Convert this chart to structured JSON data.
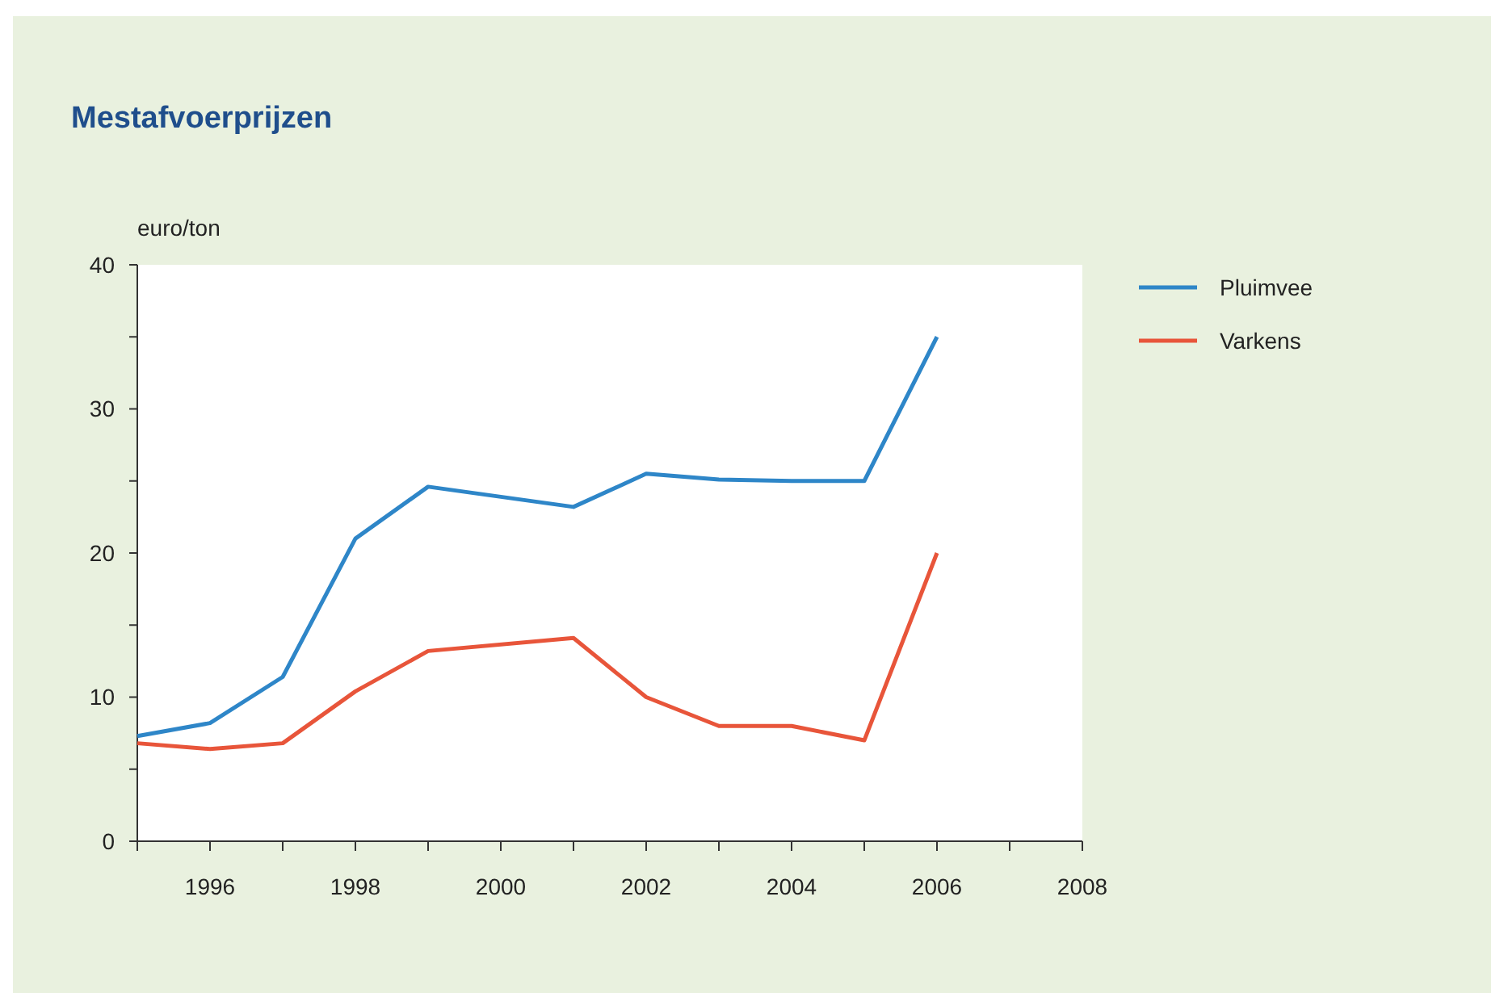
{
  "chart_data": {
    "type": "line",
    "title": "Mestafvoerprijzen",
    "ylabel": "euro/ton",
    "x": [
      1995,
      1996,
      1997,
      1998,
      1999,
      2001,
      2002,
      2003,
      2004,
      2005,
      2006
    ],
    "series": [
      {
        "name": "Pluimvee",
        "color": "#2e86c8",
        "values": [
          7.3,
          8.2,
          11.4,
          21,
          24.6,
          23.2,
          25.5,
          25.1,
          25,
          25,
          35
        ]
      },
      {
        "name": "Varkens",
        "color": "#e8553a",
        "values": [
          6.8,
          6.4,
          6.8,
          10.4,
          13.2,
          14.1,
          10,
          8,
          8,
          7,
          20
        ]
      }
    ],
    "xlim": [
      1995,
      2008
    ],
    "xticks": [
      {
        "value": 1995,
        "label": null
      },
      1996,
      {
        "value": 1997,
        "label": null
      },
      1998,
      {
        "value": 1999,
        "label": null
      },
      2000,
      {
        "value": 2001,
        "label": null
      },
      2002,
      {
        "value": 2003,
        "label": null
      },
      2004,
      {
        "value": 2005,
        "label": null
      },
      2006,
      {
        "value": 2007,
        "label": null
      },
      2008
    ],
    "ylim": [
      0,
      40
    ],
    "yticks": [
      0,
      {
        "value": 5,
        "label": null
      },
      10,
      {
        "value": 15,
        "label": null
      },
      20,
      {
        "value": 25,
        "label": null
      },
      30,
      {
        "value": 35,
        "label": null
      },
      40
    ],
    "grid": false,
    "legend": "right",
    "marker": "none",
    "line_style": "solid"
  }
}
